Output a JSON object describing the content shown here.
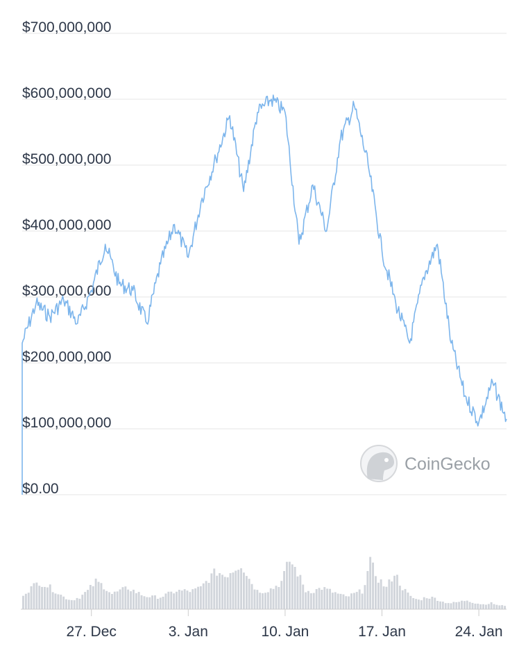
{
  "chart_data": {
    "type": "line",
    "title": "",
    "xlabel": "",
    "ylabel": "",
    "ylim": [
      0,
      700000000
    ],
    "y_ticks": [
      {
        "value": 700000000,
        "label": "$700,000,000"
      },
      {
        "value": 600000000,
        "label": "$600,000,000"
      },
      {
        "value": 500000000,
        "label": "$500,000,000"
      },
      {
        "value": 400000000,
        "label": "$400,000,000"
      },
      {
        "value": 300000000,
        "label": "$300,000,000"
      },
      {
        "value": 200000000,
        "label": "$200,000,000"
      },
      {
        "value": 100000000,
        "label": "$100,000,000"
      },
      {
        "value": 0,
        "label": "$0.00"
      }
    ],
    "x_range": [
      "2022-12-22",
      "2023-01-26"
    ],
    "x_ticks": [
      {
        "date": "2022-12-27",
        "label": "27. Dec"
      },
      {
        "date": "2023-01-03",
        "label": "3. Jan"
      },
      {
        "date": "2023-01-10",
        "label": "10. Jan"
      },
      {
        "date": "2023-01-17",
        "label": "17. Jan"
      },
      {
        "date": "2023-01-24",
        "label": "24. Jan"
      }
    ],
    "grid": true,
    "series": [
      {
        "color": "#7cb5ec",
        "points": [
          [
            "2022-12-22",
            0
          ],
          [
            "2022-12-22",
            230000000
          ],
          [
            "2022-12-23",
            290000000
          ],
          [
            "2022-12-24",
            270000000
          ],
          [
            "2022-12-25",
            295000000
          ],
          [
            "2022-12-26",
            260000000
          ],
          [
            "2022-12-27",
            310000000
          ],
          [
            "2022-12-28",
            380000000
          ],
          [
            "2022-12-29",
            320000000
          ],
          [
            "2022-12-30",
            310000000
          ],
          [
            "2022-12-31",
            260000000
          ],
          [
            "2023-01-01",
            350000000
          ],
          [
            "2023-01-02",
            410000000
          ],
          [
            "2023-01-03",
            360000000
          ],
          [
            "2023-01-04",
            450000000
          ],
          [
            "2023-01-05",
            510000000
          ],
          [
            "2023-01-06",
            575000000
          ],
          [
            "2023-01-07",
            460000000
          ],
          [
            "2023-01-08",
            580000000
          ],
          [
            "2023-01-09",
            600000000
          ],
          [
            "2023-01-10",
            580000000
          ],
          [
            "2023-01-11",
            380000000
          ],
          [
            "2023-01-12",
            470000000
          ],
          [
            "2023-01-13",
            400000000
          ],
          [
            "2023-01-14",
            540000000
          ],
          [
            "2023-01-15",
            590000000
          ],
          [
            "2023-01-16",
            500000000
          ],
          [
            "2023-01-17",
            370000000
          ],
          [
            "2023-01-18",
            290000000
          ],
          [
            "2023-01-19",
            230000000
          ],
          [
            "2023-01-20",
            330000000
          ],
          [
            "2023-01-21",
            380000000
          ],
          [
            "2023-01-22",
            230000000
          ],
          [
            "2023-01-23",
            150000000
          ],
          [
            "2023-01-24",
            110000000
          ],
          [
            "2023-01-25",
            170000000
          ],
          [
            "2023-01-26",
            115000000
          ]
        ]
      }
    ],
    "volume_series": {
      "color": "#d1d5db",
      "values": [
        0.25,
        0.35,
        0.45,
        0.38,
        0.3,
        0.2,
        0.15,
        0.2,
        0.3,
        0.45,
        0.38,
        0.25,
        0.3,
        0.35,
        0.28,
        0.22,
        0.2,
        0.2,
        0.25,
        0.3,
        0.3,
        0.3,
        0.35,
        0.5,
        0.62,
        0.55,
        0.65,
        0.75,
        0.5,
        0.3,
        0.3,
        0.35,
        0.45,
        0.8,
        0.6,
        0.3,
        0.3,
        0.35,
        0.3,
        0.25,
        0.2,
        0.25,
        0.3,
        0.75,
        0.5,
        0.35,
        0.6,
        0.35,
        0.2,
        0.15,
        0.2,
        0.18,
        0.12,
        0.1,
        0.12,
        0.15,
        0.1,
        0.08,
        0.1,
        0.06
      ]
    },
    "watermark": "CoinGecko"
  }
}
